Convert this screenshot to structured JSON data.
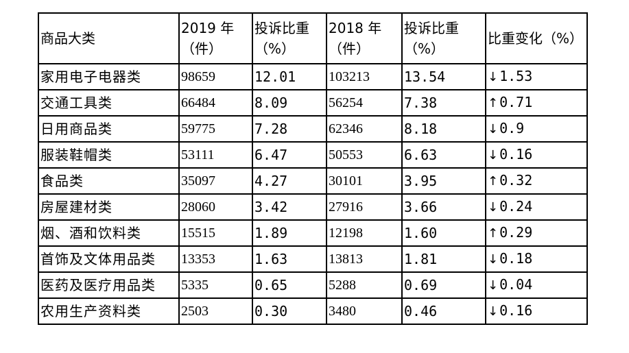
{
  "table": {
    "headers": [
      {
        "line1": "商品大类",
        "line2": ""
      },
      {
        "line1": "2019 年",
        "line2": "（件）"
      },
      {
        "line1": "投诉比重",
        "line2": "（%）"
      },
      {
        "line1": "2018 年",
        "line2": "（件）"
      },
      {
        "line1": "投诉比重",
        "line2": "（%）"
      },
      {
        "line1": "比重变化（%）",
        "line2": ""
      }
    ],
    "rows": [
      {
        "category": "家用电子电器类",
        "count_2019": "98659",
        "share_2019": "12.01",
        "count_2018": "103213",
        "share_2018": "13.54",
        "direction": "down",
        "arrow": "↓",
        "change": "1.53"
      },
      {
        "category": "交通工具类",
        "count_2019": "66484",
        "share_2019": "8.09",
        "count_2018": "56254",
        "share_2018": "7.38",
        "direction": "up",
        "arrow": "↑",
        "change": "0.71"
      },
      {
        "category": "日用商品类",
        "count_2019": "59775",
        "share_2019": "7.28",
        "count_2018": "62346",
        "share_2018": "8.18",
        "direction": "down",
        "arrow": "↓",
        "change": "0.9"
      },
      {
        "category": "服装鞋帽类",
        "count_2019": "53111",
        "share_2019": "6.47",
        "count_2018": "50553",
        "share_2018": "6.63",
        "direction": "down",
        "arrow": "↓",
        "change": "0.16"
      },
      {
        "category": "食品类",
        "count_2019": "35097",
        "share_2019": "4.27",
        "count_2018": "30101",
        "share_2018": "3.95",
        "direction": "up",
        "arrow": "↑",
        "change": "0.32"
      },
      {
        "category": "房屋建材类",
        "count_2019": "28060",
        "share_2019": "3.42",
        "count_2018": "27916",
        "share_2018": "3.66",
        "direction": "down",
        "arrow": "↓",
        "change": "0.24"
      },
      {
        "category": "烟、酒和饮料类",
        "count_2019": "15515",
        "share_2019": "1.89",
        "count_2018": "12198",
        "share_2018": "1.60",
        "direction": "up",
        "arrow": "↑",
        "change": "0.29"
      },
      {
        "category": "首饰及文体用品类",
        "count_2019": "13353",
        "share_2019": "1.63",
        "count_2018": "13813",
        "share_2018": "1.81",
        "direction": "down",
        "arrow": "↓",
        "change": "0.18"
      },
      {
        "category": "医药及医疗用品类",
        "count_2019": "5335",
        "share_2019": "0.65",
        "count_2018": "5288",
        "share_2018": "0.69",
        "direction": "down",
        "arrow": "↓",
        "change": "0.04"
      },
      {
        "category": "农用生产资料类",
        "count_2019": "2503",
        "share_2019": "0.30",
        "count_2018": "3480",
        "share_2018": "0.46",
        "direction": "down",
        "arrow": "↓",
        "change": "0.16"
      }
    ]
  }
}
